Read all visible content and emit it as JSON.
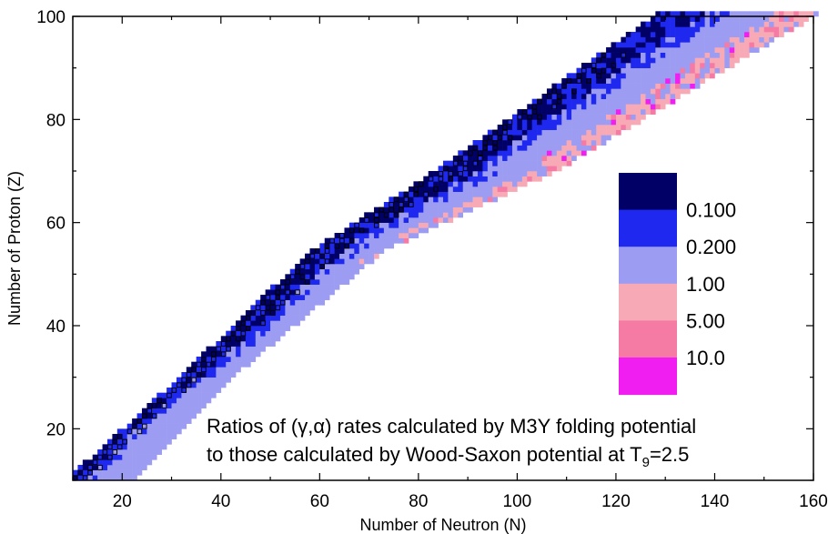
{
  "chart_data": {
    "type": "heatmap",
    "title": "",
    "xlabel": "Number of Neutron (N)",
    "ylabel": "Number of Proton (Z)",
    "xlim": [
      10,
      160
    ],
    "ylim": [
      10,
      100
    ],
    "x_ticks": [
      20,
      40,
      60,
      80,
      100,
      120,
      140,
      160
    ],
    "y_ticks": [
      20,
      40,
      60,
      80,
      100
    ],
    "grid": false,
    "legend_position": "right",
    "color_scale": {
      "levels": [
        "< 0.100",
        "0.100",
        "0.200",
        "1.00",
        "5.00",
        "10.0"
      ],
      "boundary_labels": [
        "0.100",
        "0.200",
        "1.00",
        "5.00",
        "10.0"
      ],
      "colors": [
        "#000066",
        "#1e28ee",
        "#9c9cf2",
        "#f7aab6",
        "#f57aa4",
        "#f01ef0"
      ]
    },
    "annotation_lines": [
      "Ratios of (γ,α) rates calculated by M3Y folding potential",
      "to those calculated by Wood-Saxon potential at T"
    ],
    "annotation_subscript": "9",
    "annotation_suffix": "=2.5",
    "region_bands": [
      {
        "z_range": [
          10,
          30
        ],
        "n_min": [
          9,
          32
        ],
        "n_max": [
          22,
          42
        ]
      },
      {
        "z_range": [
          30,
          54
        ],
        "n_min": [
          32,
          58
        ],
        "n_max": [
          42,
          72
        ]
      },
      {
        "z_range": [
          54,
          70
        ],
        "n_min": [
          58,
          84
        ],
        "n_max": [
          72,
          108
        ]
      },
      {
        "z_range": [
          70,
          100
        ],
        "n_min": [
          84,
          128
        ],
        "n_max": [
          108,
          160
        ]
      }
    ]
  }
}
